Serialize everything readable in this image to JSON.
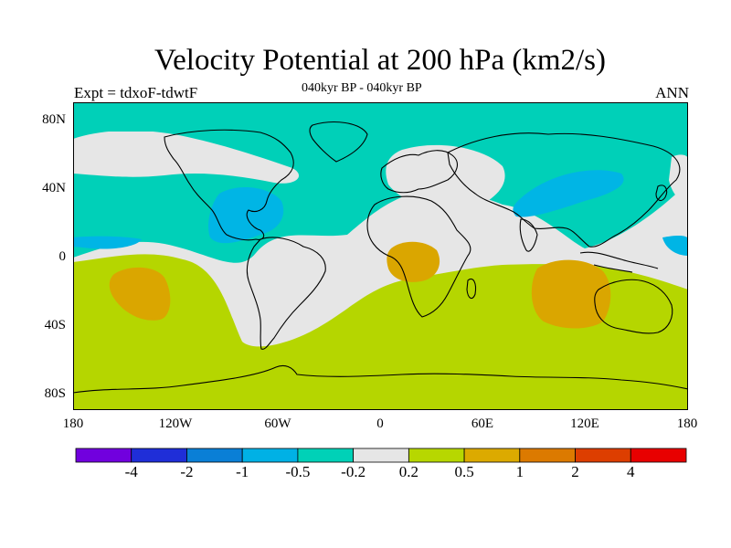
{
  "title": "Velocity Potential at 200 hPa (km2/s)",
  "subtitle": "040kyr BP - 040kyr BP",
  "left_label": "Expt = tdxoF-tdwtF",
  "right_label": "ANN",
  "lat_labels": [
    "80N",
    "40N",
    "0",
    "40S",
    "80S"
  ],
  "lon_labels": [
    "180",
    "120W",
    "60W",
    "0",
    "60E",
    "120E",
    "180"
  ],
  "colorbar": {
    "colors": [
      "#7100de",
      "#1f2ed8",
      "#0a7fd6",
      "#00b1e5",
      "#00d1b7",
      "#e6e6e6",
      "#b7d700",
      "#dcaa00",
      "#dc7a00",
      "#dd3e00",
      "#e80000"
    ],
    "labels": [
      "-4",
      "-2",
      "-1",
      "-0.5",
      "-0.2",
      "0.2",
      "0.5",
      "1",
      "2",
      "4"
    ]
  },
  "field_colors": {
    "neg_0_5": "#00b5e5",
    "neg_0_2": "#00d0b8",
    "near_zero": "#e6e6e6",
    "pos_0_2": "#b5d600",
    "pos_0_5": "#daa600"
  }
}
